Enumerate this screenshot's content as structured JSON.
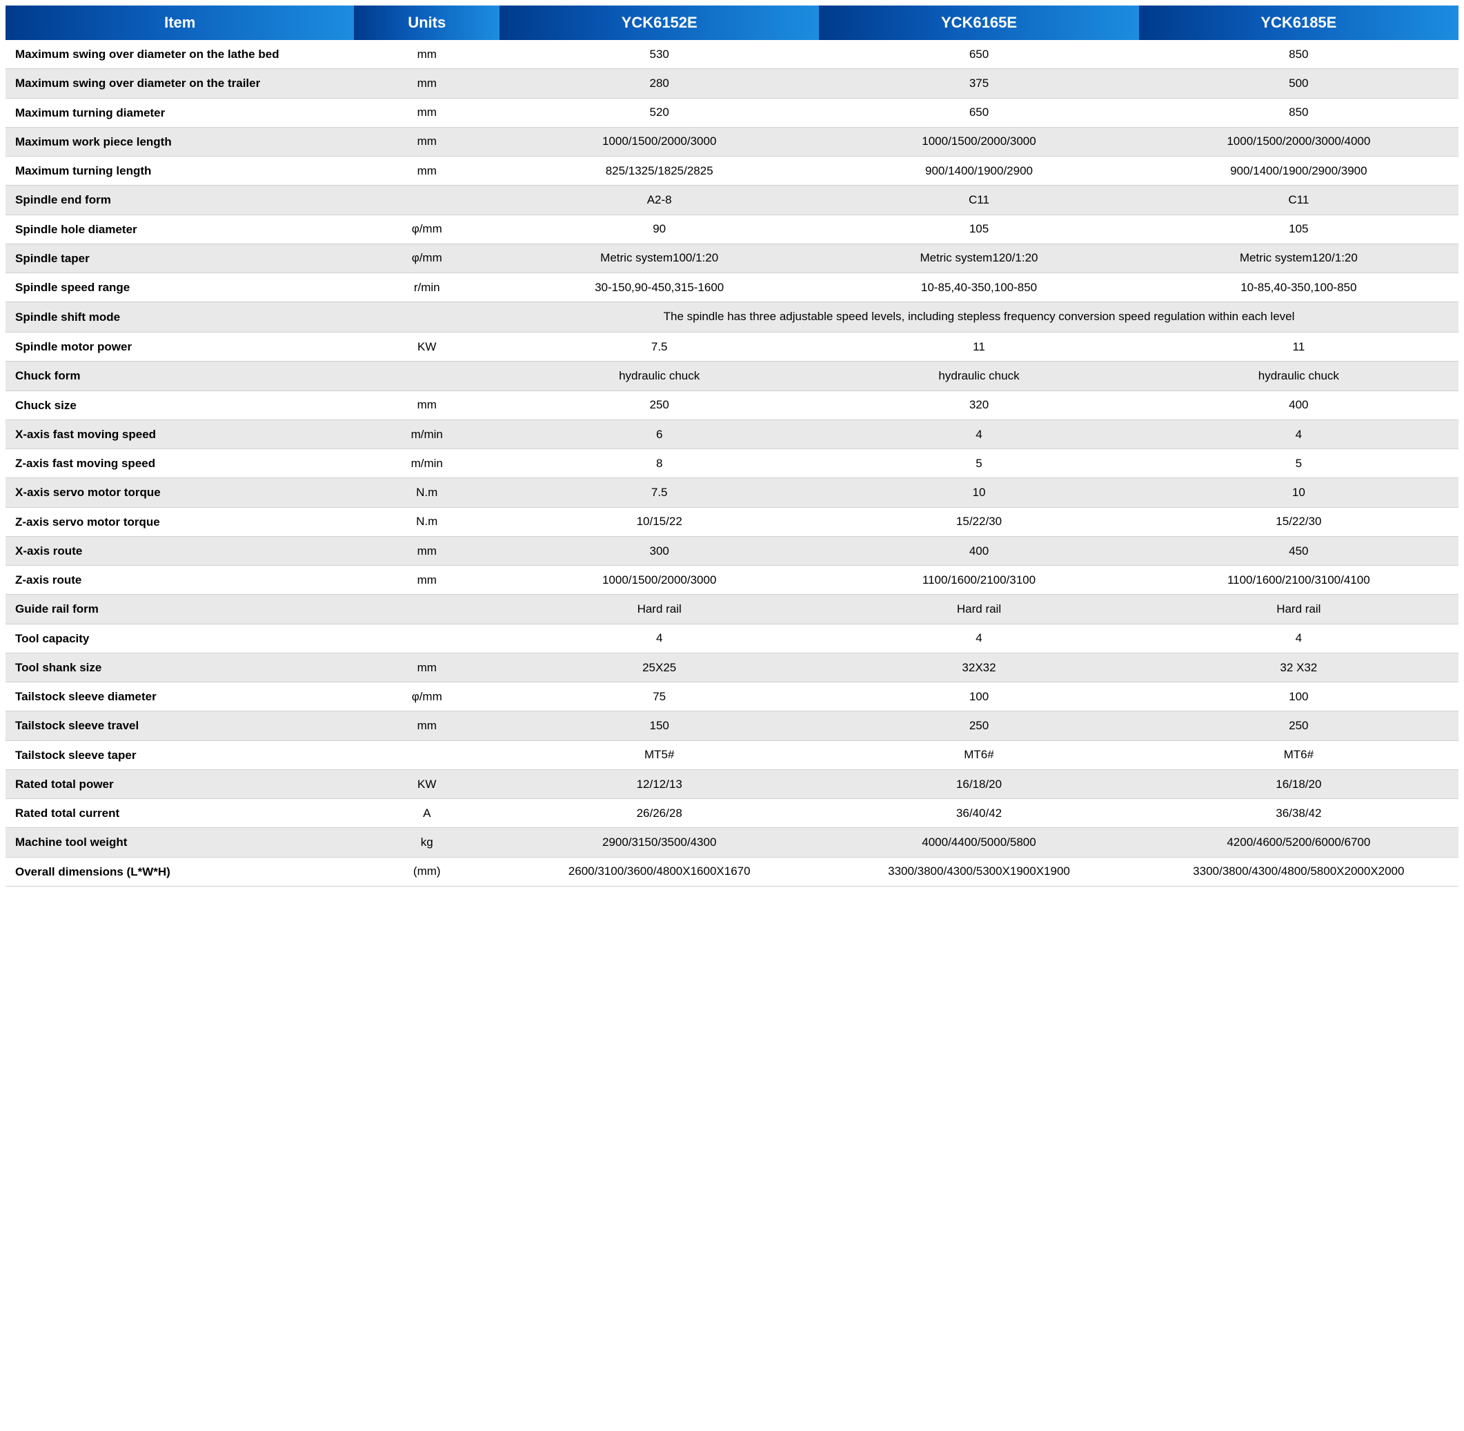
{
  "table": {
    "header_bg_gradient": [
      "#003a8c",
      "#0a5bb8",
      "#1c8de0"
    ],
    "header_text_color": "#ffffff",
    "row_alt_bg": "#e9e9e9",
    "row_plain_bg": "#ffffff",
    "border_color": "#d0d0d0",
    "text_color": "#000000",
    "header_fontsize": 22,
    "cell_fontsize": 17,
    "columns": [
      "Item",
      "Units",
      "YCK6152E",
      "YCK6165E",
      "YCK6185E"
    ],
    "col_widths_pct": [
      24,
      10,
      22,
      22,
      22
    ],
    "rows": [
      {
        "alt": false,
        "item": "Maximum swing over diameter on the lathe bed",
        "units": "mm",
        "v": [
          "530",
          "650",
          "850"
        ]
      },
      {
        "alt": true,
        "item": "Maximum swing over diameter on the trailer",
        "units": "mm",
        "v": [
          "280",
          "375",
          "500"
        ]
      },
      {
        "alt": false,
        "item": "Maximum turning diameter",
        "units": "mm",
        "v": [
          "520",
          "650",
          "850"
        ]
      },
      {
        "alt": true,
        "item": "Maximum work piece length",
        "units": "mm",
        "v": [
          "1000/1500/2000/3000",
          "1000/1500/2000/3000",
          "1000/1500/2000/3000/4000"
        ]
      },
      {
        "alt": false,
        "item": "Maximum turning length",
        "units": "mm",
        "v": [
          "825/1325/1825/2825",
          "900/1400/1900/2900",
          "900/1400/1900/2900/3900"
        ]
      },
      {
        "alt": true,
        "item": "Spindle end form",
        "units": "",
        "v": [
          "A2-8",
          "C11",
          "C11"
        ]
      },
      {
        "alt": false,
        "item": "Spindle hole diameter",
        "units": "φ/mm",
        "v": [
          "90",
          "105",
          "105"
        ]
      },
      {
        "alt": true,
        "item": "Spindle taper",
        "units": "φ/mm",
        "v": [
          "Metric system100/1:20",
          "Metric system120/1:20",
          "Metric system120/1:20"
        ]
      },
      {
        "alt": false,
        "item": "Spindle speed range",
        "units": "r/min",
        "v": [
          "30-150,90-450,315-1600",
          "10-85,40-350,100-850",
          "10-85,40-350,100-850"
        ]
      },
      {
        "alt": true,
        "item": "Spindle shift mode",
        "units": "",
        "span": "The spindle has three adjustable speed levels, including stepless frequency conversion speed regulation within each level"
      },
      {
        "alt": false,
        "item": "Spindle motor power",
        "units": "KW",
        "v": [
          "7.5",
          "11",
          "11"
        ]
      },
      {
        "alt": true,
        "item": "Chuck form",
        "units": "",
        "v": [
          "hydraulic chuck",
          "hydraulic chuck",
          "hydraulic chuck"
        ]
      },
      {
        "alt": false,
        "item": "Chuck size",
        "units": "mm",
        "v": [
          "250",
          "320",
          "400"
        ]
      },
      {
        "alt": true,
        "item": "X-axis fast moving speed",
        "units": "m/min",
        "v": [
          "6",
          "4",
          "4"
        ]
      },
      {
        "alt": false,
        "item": "Z-axis fast moving speed",
        "units": "m/min",
        "v": [
          "8",
          "5",
          "5"
        ]
      },
      {
        "alt": true,
        "item": "X-axis servo motor torque",
        "units": "N.m",
        "v": [
          "7.5",
          "10",
          "10"
        ]
      },
      {
        "alt": false,
        "item": "Z-axis servo motor torque",
        "units": "N.m",
        "v": [
          "10/15/22",
          "15/22/30",
          "15/22/30"
        ]
      },
      {
        "alt": true,
        "item": "X-axis route",
        "units": "mm",
        "v": [
          "300",
          "400",
          "450"
        ]
      },
      {
        "alt": false,
        "item": "Z-axis route",
        "units": "mm",
        "v": [
          "1000/1500/2000/3000",
          "1100/1600/2100/3100",
          "1100/1600/2100/3100/4100"
        ]
      },
      {
        "alt": true,
        "item": "Guide rail form",
        "units": "",
        "v": [
          "Hard rail",
          "Hard rail",
          "Hard rail"
        ]
      },
      {
        "alt": false,
        "item": "Tool capacity",
        "units": "",
        "v": [
          "4",
          "4",
          "4"
        ]
      },
      {
        "alt": true,
        "item": "Tool shank size",
        "units": "mm",
        "v": [
          "25X25",
          "32X32",
          "32 X32"
        ]
      },
      {
        "alt": false,
        "item": "Tailstock sleeve diameter",
        "units": "φ/mm",
        "v": [
          "75",
          "100",
          "100"
        ]
      },
      {
        "alt": true,
        "item": "Tailstock sleeve travel",
        "units": "mm",
        "v": [
          "150",
          "250",
          "250"
        ]
      },
      {
        "alt": false,
        "item": "Tailstock sleeve taper",
        "units": "",
        "v": [
          "MT5#",
          "MT6#",
          "MT6#"
        ]
      },
      {
        "alt": true,
        "item": "Rated total power",
        "units": "KW",
        "v": [
          "12/12/13",
          "16/18/20",
          "16/18/20"
        ]
      },
      {
        "alt": false,
        "item": "Rated total current",
        "units": "A",
        "v": [
          "26/26/28",
          "36/40/42",
          "36/38/42"
        ]
      },
      {
        "alt": true,
        "item": "Machine tool weight",
        "units": "kg",
        "v": [
          "2900/3150/3500/4300",
          "4000/4400/5000/5800",
          "4200/4600/5200/6000/6700"
        ]
      },
      {
        "alt": false,
        "item": "Overall dimensions (L*W*H)",
        "units": "(mm)",
        "v": [
          "2600/3100/3600/4800X1600X1670",
          "3300/3800/4300/5300X1900X1900",
          "3300/3800/4300/4800/5800X2000X2000"
        ]
      }
    ]
  }
}
